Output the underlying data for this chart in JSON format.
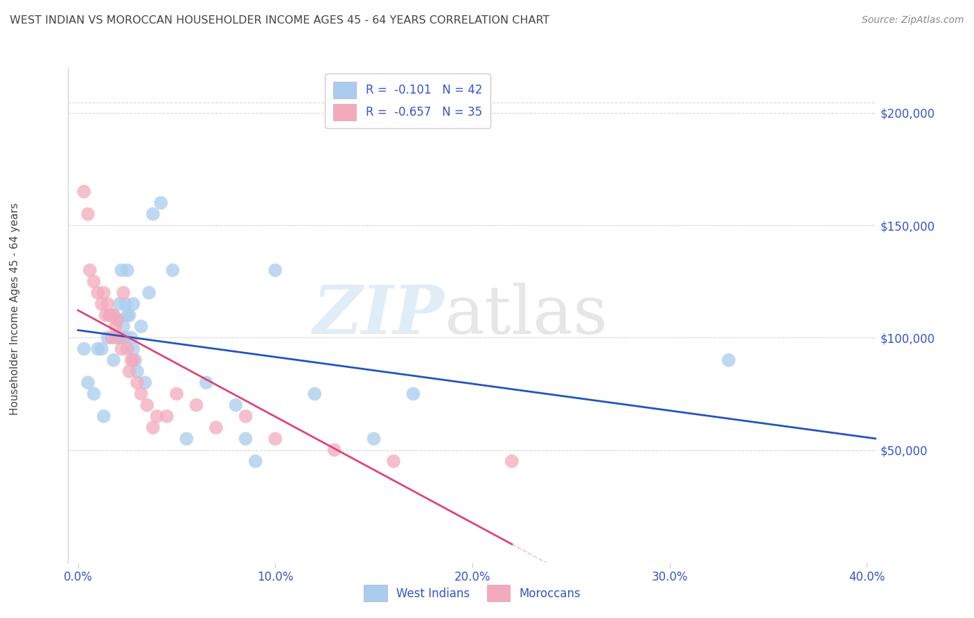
{
  "title": "WEST INDIAN VS MOROCCAN HOUSEHOLDER INCOME AGES 45 - 64 YEARS CORRELATION CHART",
  "source": "Source: ZipAtlas.com",
  "ylabel": "Householder Income Ages 45 - 64 years",
  "xlabel_ticks": [
    "0.0%",
    "10.0%",
    "20.0%",
    "30.0%",
    "40.0%"
  ],
  "xlabel_vals": [
    0.0,
    0.1,
    0.2,
    0.3,
    0.4
  ],
  "ytick_labels": [
    "$50,000",
    "$100,000",
    "$150,000",
    "$200,000"
  ],
  "ytick_vals": [
    50000,
    100000,
    150000,
    200000
  ],
  "legend1_label": "R =  -0.101   N = 42",
  "legend2_label": "R =  -0.657   N = 35",
  "legend_bottom1": "West Indians",
  "legend_bottom2": "Moroccans",
  "blue_color": "#aaccee",
  "pink_color": "#f4aabc",
  "line_blue": "#2255bb",
  "line_pink": "#dd4477",
  "background": "#ffffff",
  "grid_color": "#cccccc",
  "title_color": "#444444",
  "axis_label_color": "#3355cc",
  "west_indians_x": [
    0.003,
    0.005,
    0.008,
    0.01,
    0.012,
    0.013,
    0.015,
    0.016,
    0.018,
    0.018,
    0.019,
    0.02,
    0.021,
    0.022,
    0.022,
    0.023,
    0.024,
    0.024,
    0.025,
    0.025,
    0.026,
    0.027,
    0.028,
    0.028,
    0.029,
    0.03,
    0.032,
    0.034,
    0.036,
    0.038,
    0.042,
    0.048,
    0.055,
    0.065,
    0.08,
    0.085,
    0.09,
    0.1,
    0.12,
    0.15,
    0.17,
    0.33
  ],
  "west_indians_y": [
    95000,
    80000,
    75000,
    95000,
    95000,
    65000,
    100000,
    110000,
    90000,
    110000,
    100000,
    108000,
    115000,
    100000,
    130000,
    105000,
    100000,
    115000,
    110000,
    130000,
    110000,
    100000,
    115000,
    95000,
    90000,
    85000,
    105000,
    80000,
    120000,
    155000,
    160000,
    130000,
    55000,
    80000,
    70000,
    55000,
    45000,
    130000,
    75000,
    55000,
    75000,
    90000
  ],
  "moroccans_x": [
    0.003,
    0.005,
    0.006,
    0.008,
    0.01,
    0.012,
    0.013,
    0.014,
    0.015,
    0.016,
    0.017,
    0.018,
    0.019,
    0.02,
    0.021,
    0.022,
    0.023,
    0.025,
    0.026,
    0.027,
    0.028,
    0.03,
    0.032,
    0.035,
    0.038,
    0.04,
    0.045,
    0.05,
    0.06,
    0.07,
    0.085,
    0.1,
    0.13,
    0.16,
    0.22
  ],
  "moroccans_y": [
    165000,
    155000,
    130000,
    125000,
    120000,
    115000,
    120000,
    110000,
    115000,
    110000,
    100000,
    110000,
    105000,
    108000,
    100000,
    95000,
    120000,
    95000,
    85000,
    90000,
    90000,
    80000,
    75000,
    70000,
    60000,
    65000,
    65000,
    75000,
    70000,
    60000,
    65000,
    55000,
    50000,
    45000,
    45000
  ],
  "ylim_min": 0,
  "ylim_max": 220000,
  "xlim_min": -0.005,
  "xlim_max": 0.405
}
